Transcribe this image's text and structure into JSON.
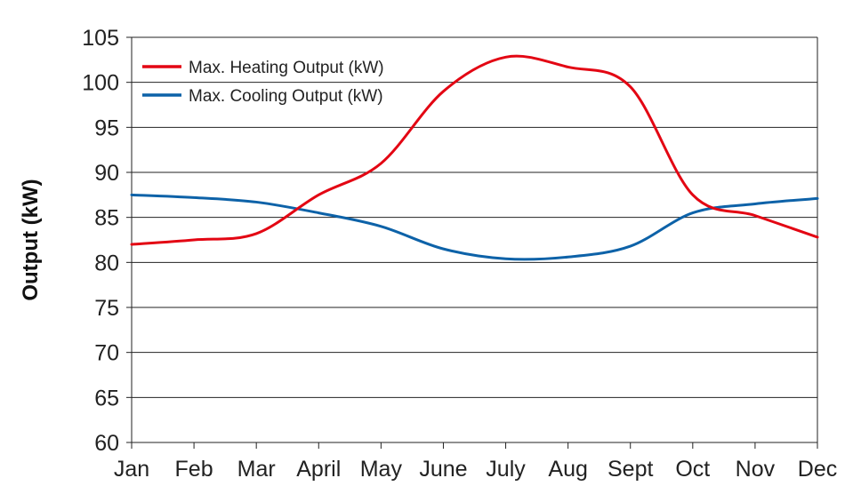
{
  "chart_data": {
    "type": "line",
    "title": "",
    "xlabel": "",
    "ylabel": "Output (kW)",
    "categories": [
      "Jan",
      "Feb",
      "Mar",
      "April",
      "May",
      "June",
      "July",
      "Aug",
      "Sept",
      "Oct",
      "Nov",
      "Dec"
    ],
    "ylim": [
      60,
      105
    ],
    "yticks": [
      60,
      65,
      70,
      75,
      80,
      85,
      90,
      95,
      100,
      105
    ],
    "grid": true,
    "legend_position": "top-left",
    "series": [
      {
        "name": "Max. Heating Output (kW)",
        "color": "#e30613",
        "values": [
          82.0,
          82.5,
          83.2,
          87.5,
          91.0,
          99.0,
          102.8,
          101.7,
          99.5,
          87.5,
          85.2,
          82.8
        ]
      },
      {
        "name": "Max. Cooling Output (kW)",
        "color": "#0d62a8",
        "values": [
          87.5,
          87.2,
          86.7,
          85.5,
          84.0,
          81.5,
          80.4,
          80.6,
          81.8,
          85.5,
          86.5,
          87.1
        ]
      }
    ]
  }
}
